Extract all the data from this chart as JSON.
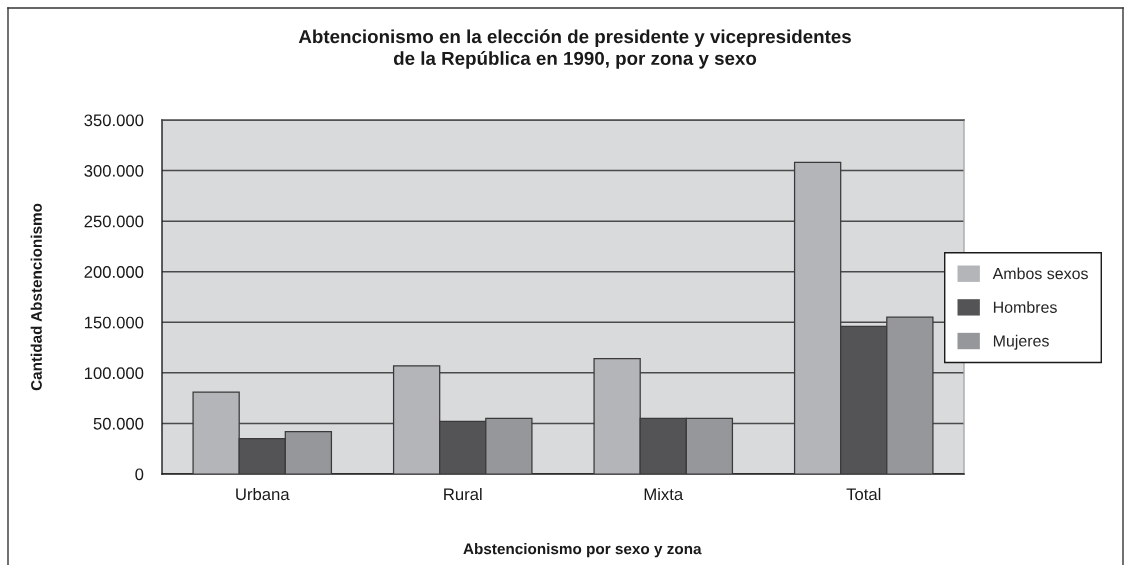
{
  "chart_data": {
    "type": "bar",
    "title": "Abtencionismo en la elección de presidente y vicepresidentes\nde la República en 1990, por zona y sexo",
    "xlabel": "Abstencionismo por sexo y zona",
    "ylabel": "Cantidad Abstencionismo",
    "categories": [
      "Urbana",
      "Rural",
      "Mixta",
      "Total"
    ],
    "series": [
      {
        "name": "Ambos sexos",
        "color": "#b4b5b9",
        "values": [
          81000,
          107000,
          114000,
          308000
        ]
      },
      {
        "name": "Hombres",
        "color": "#545457",
        "values": [
          35000,
          52000,
          55000,
          146000
        ]
      },
      {
        "name": "Mujeres",
        "color": "#96979b",
        "values": [
          42000,
          55000,
          55000,
          155000
        ]
      }
    ],
    "ylim": [
      0,
      350000
    ],
    "yticks": [
      0,
      {
        "value": 50000,
        "label": "50.000"
      },
      {
        "value": 100000,
        "label": "100.000"
      },
      {
        "value": 150000,
        "label": "150.000"
      },
      {
        "value": 200000,
        "label": "200.000"
      },
      {
        "value": 250000,
        "label": "250.000"
      },
      {
        "value": 300000,
        "label": "300.000"
      },
      {
        "value": 350000,
        "label": "350.000"
      }
    ],
    "grid": "y",
    "legend": "right"
  }
}
